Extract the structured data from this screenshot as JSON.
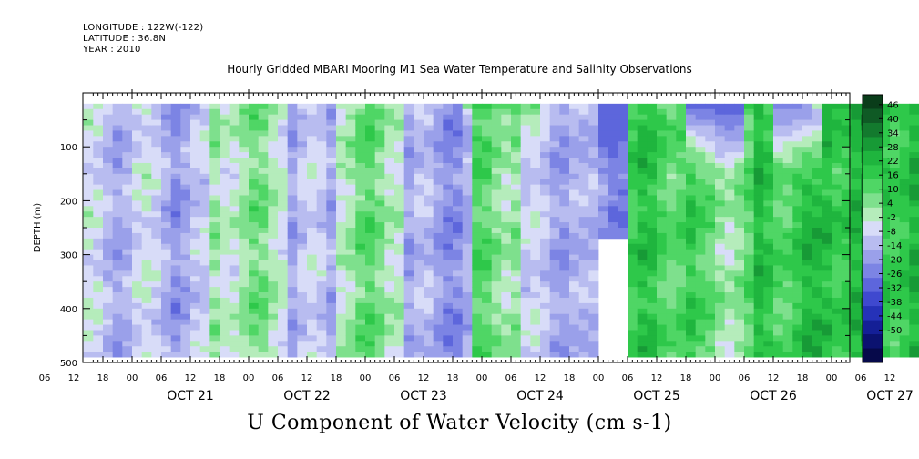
{
  "header": {
    "longitude": "LONGITUDE : 122W(-122)",
    "latitude": "LATITUDE : 36.8N",
    "year": "YEAR : 2010",
    "title": "Hourly Gridded MBARI Mooring M1 Sea Water Temperature and Salinity Observations"
  },
  "footer": {
    "variable_title": "U Component of Water Velocity (cm s-1)"
  },
  "chart_data": {
    "type": "heatmap",
    "title": "Hourly Gridded MBARI Mooring M1 Sea Water Temperature and Salinity Observations",
    "xlabel": "",
    "ylabel": "DEPTH (m)",
    "colorbar_label": "U Component of Water Velocity (cm s-1)",
    "ylim": [
      500,
      20
    ],
    "y_ticks": [
      100,
      200,
      300,
      400,
      500
    ],
    "y_tick_labels": [
      "100",
      "200",
      "300",
      "400",
      "500"
    ],
    "x_hour_labels": [
      "06",
      "12",
      "18",
      "00",
      "06",
      "12",
      "18",
      "00",
      "06",
      "12",
      "18",
      "00",
      "06",
      "12",
      "18",
      "00",
      "06",
      "12",
      "18",
      "00",
      "06",
      "12",
      "18",
      "00",
      "06",
      "12",
      "18",
      "00",
      "06",
      "12"
    ],
    "x_date_labels": [
      "OCT 21",
      "OCT 22",
      "OCT 23",
      "OCT 24",
      "OCT 25",
      "OCT 26",
      "OCT 27"
    ],
    "colorbar_levels": [
      "46",
      "40",
      "34",
      "28",
      "22",
      "16",
      "10",
      "4",
      "-2",
      "-8",
      "-14",
      "-20",
      "-26",
      "-32",
      "-38",
      "-44",
      "-50"
    ],
    "colormap": [
      "#0a3d1a",
      "#0f5a25",
      "#137a2e",
      "#179a36",
      "#1fb53e",
      "#2ec84a",
      "#4fd665",
      "#7ee08d",
      "#b5ecbb",
      "#d8dcf8",
      "#b8bcf0",
      "#9aa0ea",
      "#7c84e4",
      "#5d66dc",
      "#3f49cf",
      "#2532b8",
      "#141f96",
      "#0b1270",
      "#06094a"
    ],
    "data_gaps": [
      "OCT 25 00-06, 270-490 m"
    ],
    "vertical_regions": [
      {
        "start": "OCT 20 14",
        "end": "OCT 21 08",
        "value": -6
      },
      {
        "start": "OCT 21 08",
        "end": "OCT 21 17",
        "value": -10
      },
      {
        "start": "OCT 21 17",
        "end": "OCT 22 08",
        "value": 6
      },
      {
        "start": "OCT 22 08",
        "end": "OCT 22 18",
        "value": -8
      },
      {
        "start": "OCT 22 18",
        "end": "OCT 23 08",
        "value": 8
      },
      {
        "start": "OCT 23 08",
        "end": "OCT 23 22",
        "value": -12
      },
      {
        "start": "OCT 23 22",
        "end": "OCT 24 09",
        "value": 10
      },
      {
        "start": "OCT 24 09",
        "end": "OCT 24 20",
        "value": -8
      },
      {
        "start": "OCT 24 20",
        "end": "OCT 25 07",
        "value": -14
      },
      {
        "start": "OCT 25 07",
        "end": "OCT 25 20",
        "value": 18
      },
      {
        "start": "OCT 25 20",
        "end": "OCT 26 09",
        "value": 10
      },
      {
        "start": "OCT 26 09",
        "end": "OCT 26 22",
        "value": 20
      },
      {
        "start": "OCT 26 22",
        "end": "OCT 27 18",
        "value": 24
      }
    ],
    "surface_features": [
      {
        "start": "OCT 23 20",
        "end": "OCT 24 12",
        "depth_max": 60,
        "value": 20
      },
      {
        "start": "OCT 25 00",
        "end": "OCT 25 06",
        "depth_max": 200,
        "value": -22
      },
      {
        "start": "OCT 25 18",
        "end": "OCT 26 06",
        "depth_max": 140,
        "value": -30
      },
      {
        "start": "OCT 26 12",
        "end": "OCT 26 22",
        "depth_max": 170,
        "value": -18
      },
      {
        "start": "OCT 26 20",
        "end": "OCT 27 06",
        "depth_max": 40,
        "value": 34
      }
    ],
    "grid": false,
    "legend_position": "right"
  }
}
